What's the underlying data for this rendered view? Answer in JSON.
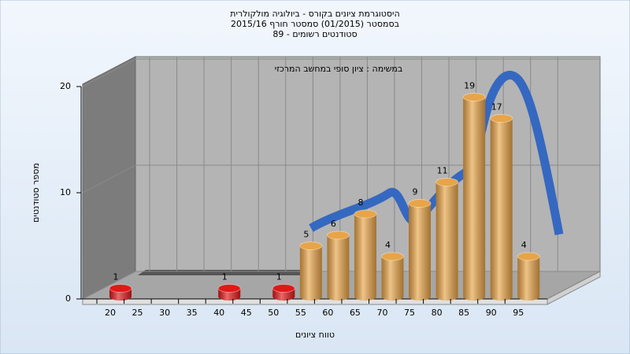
{
  "chart_data": {
    "type": "bar",
    "title": [
      "היסטוגרמת ציונים בקורס - ביולוגיה מולקולרית",
      "בסמסטר  (01/2015)  סמסטר חורף 2015/16",
      "סטודנטים רשומים - 89"
    ],
    "annotation": "במשימה : ציון סופי במחשב המרכזי",
    "xlabel": "טווח ציונים",
    "ylabel": "מספר סטודנטים",
    "categories": [
      "20",
      "25",
      "30",
      "35",
      "40",
      "45",
      "50",
      "55",
      "60",
      "65",
      "70",
      "75",
      "80",
      "85",
      "90",
      "95"
    ],
    "values": [
      1,
      0,
      0,
      0,
      1,
      0,
      1,
      5,
      6,
      8,
      4,
      9,
      11,
      19,
      17,
      4
    ],
    "colors": [
      "#e01818",
      "#e01818",
      "#e01818",
      "#e01818",
      "#e01818",
      "#e01818",
      "#e01818",
      "#e8a448",
      "#e8a448",
      "#e8a448",
      "#e8a448",
      "#e8a448",
      "#e8a448",
      "#e8a448",
      "#e8a448",
      "#e8a448"
    ],
    "ylim": [
      0,
      20
    ],
    "yticks": [
      0,
      10,
      20
    ],
    "grid": true
  }
}
